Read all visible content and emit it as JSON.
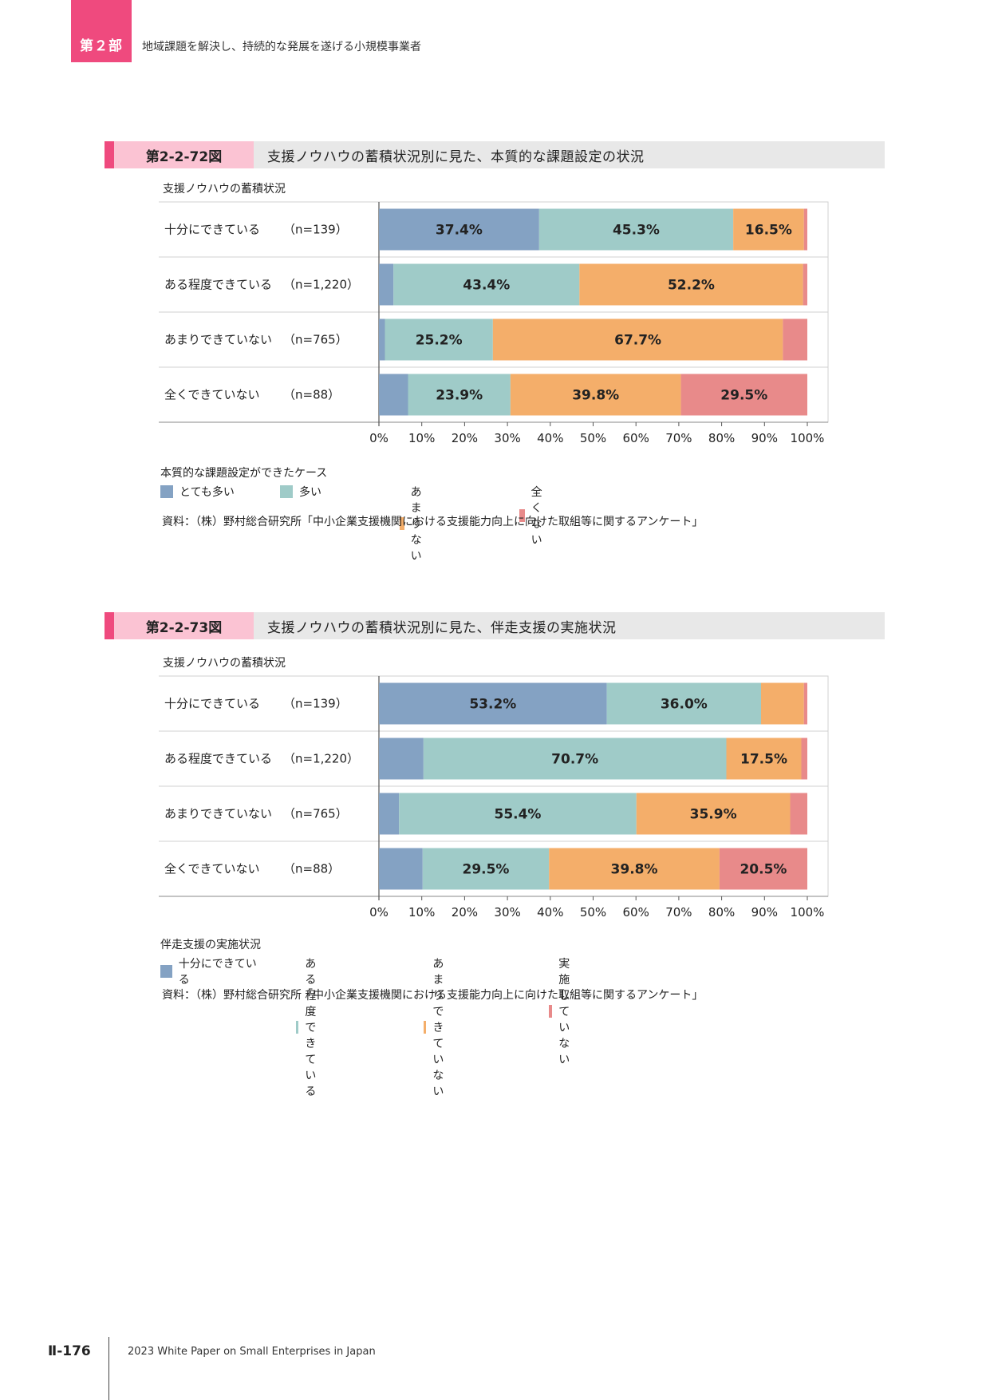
{
  "part": {
    "tab": "第２部",
    "title": "地域課題を解決し、持続的な発展を遂げる小規模事業者"
  },
  "figures": [
    {
      "number": "第2-2-72図",
      "title": "支援ノウハウの蓄積状況別に見た、本質的な課題設定の状況",
      "legend_title": "本質的な課題設定ができたケース",
      "source": "資料：（株）野村総合研究所「中小企業支援機関における支援能力向上に向けた取組等に関するアンケート」"
    },
    {
      "number": "第2-2-73図",
      "title": "支援ノウハウの蓄積状況別に見た、伴走支援の実施状況",
      "legend_title": "伴走支援の実施状況",
      "source": "資料：（株）野村総合研究所「中小企業支援機関における支援能力向上に向けた取組等に関するアンケート」"
    }
  ],
  "colors": {
    "c1": "#84a2c3",
    "c2": "#9fcbc8",
    "c3": "#f4ae6a",
    "c4": "#e88a8a"
  },
  "chart_data": [
    {
      "type": "bar",
      "orientation": "horizontal-stacked-100",
      "category_axis_label": "支援ノウハウの蓄積状況",
      "categories": [
        "十分にできている",
        "ある程度できている",
        "あまりできていない",
        "全くできていない"
      ],
      "n_labels": [
        "（n=139）",
        "（n=1,220）",
        "（n=765）",
        "（n=88）"
      ],
      "xlim": [
        0,
        100
      ],
      "ticks": [
        "0%",
        "10%",
        "20%",
        "30%",
        "40%",
        "50%",
        "60%",
        "70%",
        "80%",
        "90%",
        "100%"
      ],
      "legend_placement": "bottom",
      "series": [
        {
          "name": "とても多い",
          "values": [
            37.4,
            3.4,
            1.4,
            6.8
          ]
        },
        {
          "name": "多い",
          "values": [
            45.3,
            43.4,
            25.2,
            23.9
          ]
        },
        {
          "name": "あまりない",
          "values": [
            16.5,
            52.2,
            67.7,
            39.8
          ]
        },
        {
          "name": "全くない",
          "values": [
            0.8,
            1.0,
            5.7,
            29.5
          ]
        }
      ],
      "data_labels": [
        [
          "37.4%",
          "45.3%",
          "16.5%",
          ""
        ],
        [
          "",
          "43.4%",
          "52.2%",
          ""
        ],
        [
          "",
          "25.2%",
          "67.7%",
          ""
        ],
        [
          "",
          "23.9%",
          "39.8%",
          "29.5%"
        ]
      ]
    },
    {
      "type": "bar",
      "orientation": "horizontal-stacked-100",
      "category_axis_label": "支援ノウハウの蓄積状況",
      "categories": [
        "十分にできている",
        "ある程度できている",
        "あまりできていない",
        "全くできていない"
      ],
      "n_labels": [
        "（n=139）",
        "（n=1,220）",
        "（n=765）",
        "（n=88）"
      ],
      "xlim": [
        0,
        100
      ],
      "ticks": [
        "0%",
        "10%",
        "20%",
        "30%",
        "40%",
        "50%",
        "60%",
        "70%",
        "80%",
        "90%",
        "100%"
      ],
      "legend_placement": "bottom",
      "series": [
        {
          "name": "十分にできている",
          "values": [
            53.2,
            10.4,
            4.7,
            10.2
          ]
        },
        {
          "name": "ある程度できている",
          "values": [
            36.0,
            70.7,
            55.4,
            29.5
          ]
        },
        {
          "name": "あまりできていない",
          "values": [
            10.0,
            17.5,
            35.9,
            39.8
          ]
        },
        {
          "name": "実施していない",
          "values": [
            0.8,
            1.4,
            4.0,
            20.5
          ]
        }
      ],
      "data_labels": [
        [
          "53.2%",
          "36.0%",
          "",
          ""
        ],
        [
          "",
          "70.7%",
          "17.5%",
          ""
        ],
        [
          "",
          "55.4%",
          "35.9%",
          ""
        ],
        [
          "",
          "29.5%",
          "39.8%",
          "20.5%"
        ]
      ]
    }
  ],
  "footer": {
    "page": "Ⅱ-176",
    "text": "2023 White Paper on Small Enterprises in Japan"
  }
}
